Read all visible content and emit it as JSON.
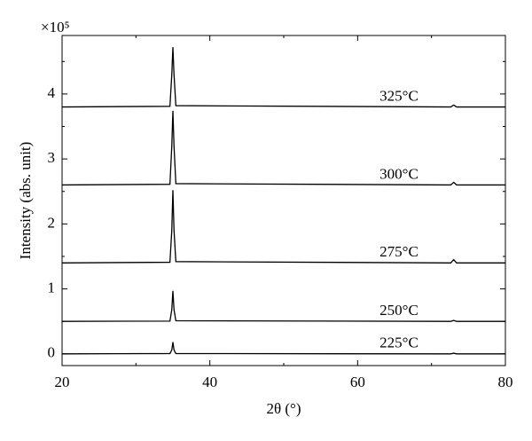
{
  "chart_data": {
    "type": "line",
    "x_label": "2θ (°)",
    "y_label": "Intensity (abs. unit)",
    "y_multiplier": "×10⁵",
    "x": [
      20,
      34.6,
      34.85,
      35,
      35.15,
      35.4,
      72.6,
      73,
      73.4,
      80
    ],
    "series": [
      {
        "name": "225°C",
        "color": "#000000",
        "values": [
          0,
          0.005,
          0.06,
          0.18,
          0.06,
          0.005,
          0,
          0.01,
          0,
          0
        ]
      },
      {
        "name": "250°C",
        "color": "#000000",
        "values": [
          0.5,
          0.505,
          0.68,
          0.97,
          0.68,
          0.51,
          0.5,
          0.515,
          0.5,
          0.5
        ]
      },
      {
        "name": "275°C",
        "color": "#000000",
        "values": [
          1.4,
          1.41,
          1.9,
          2.52,
          1.9,
          1.42,
          1.4,
          1.45,
          1.4,
          1.4
        ]
      },
      {
        "name": "300°C",
        "color": "#000000",
        "values": [
          2.6,
          2.61,
          3.2,
          3.74,
          3.2,
          2.62,
          2.6,
          2.64,
          2.6,
          2.6
        ]
      },
      {
        "name": "325°C",
        "color": "#000000",
        "values": [
          3.8,
          3.81,
          4.3,
          4.72,
          4.3,
          3.82,
          3.8,
          3.83,
          3.8,
          3.8
        ]
      }
    ],
    "xlim": [
      20,
      80
    ],
    "xticks": [
      20,
      40,
      60,
      80
    ],
    "xminorticks": [
      30,
      50,
      70
    ],
    "ylim": [
      -0.18,
      4.9
    ],
    "yticks": [
      0,
      1,
      2,
      3,
      4
    ],
    "yminorticks": [
      0.5,
      1.5,
      2.5,
      3.5,
      4.5
    ],
    "grid": false
  }
}
